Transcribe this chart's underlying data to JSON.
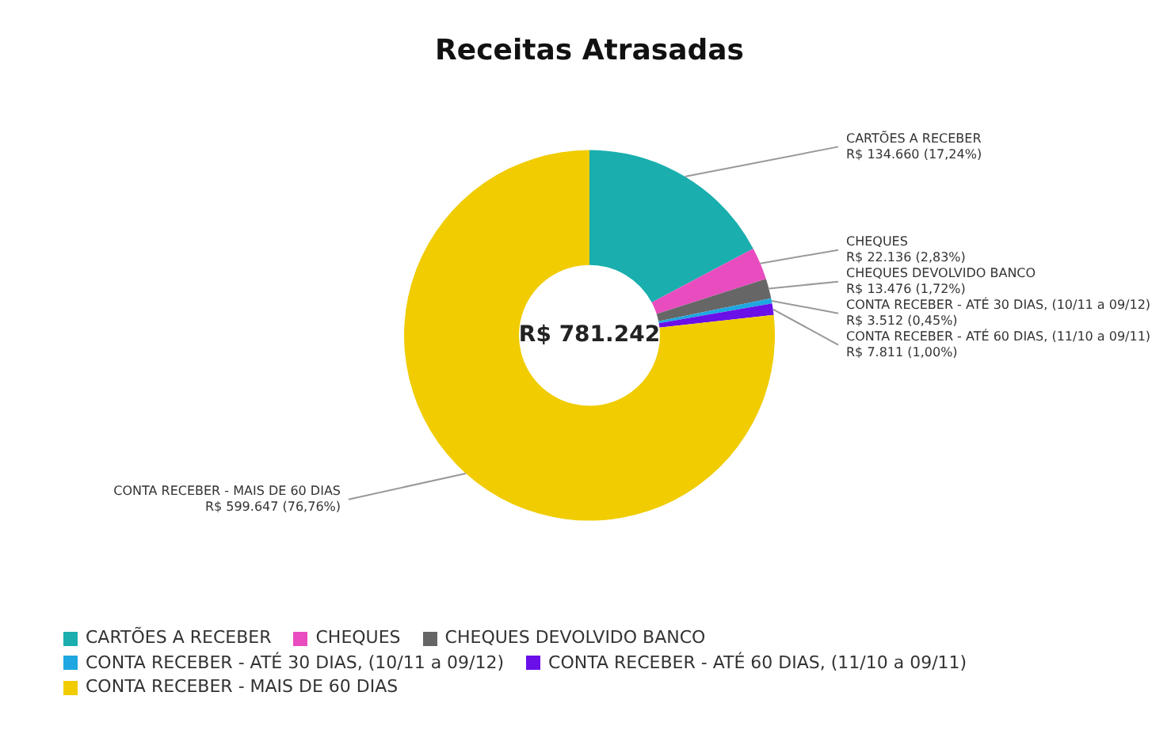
{
  "chart_data": {
    "type": "donut",
    "title": "Receitas Atrasadas",
    "categories": [
      "CARTÕES A RECEBER",
      "CHEQUES",
      "CHEQUES DEVOLVIDO BANCO",
      "CONTA RECEBER - ATÉ 30 DIAS, (10/11 a 09/12)",
      "CONTA RECEBER - ATÉ 60 DIAS, (11/10 a 09/11)",
      "CONTA RECEBER - MAIS DE 60 DIAS"
    ],
    "values": [
      134660,
      22136,
      13476,
      3512,
      7811,
      599647
    ],
    "colors": [
      "#1aaeae",
      "#e84cbf",
      "#666666",
      "#1ea7e0",
      "#6a0fe8",
      "#f0cc00"
    ],
    "value_labels": [
      "R$ 134.660 (17,24%)",
      "R$ 22.136 (2,83%)",
      "R$ 13.476 (1,72%)",
      "R$ 3.512 (0,45%)",
      "R$ 7.811 (1,00%)",
      "R$ 599.647 (76,76%)"
    ],
    "annotations": [
      "R$ 781.242"
    ],
    "legend": "bottom"
  }
}
